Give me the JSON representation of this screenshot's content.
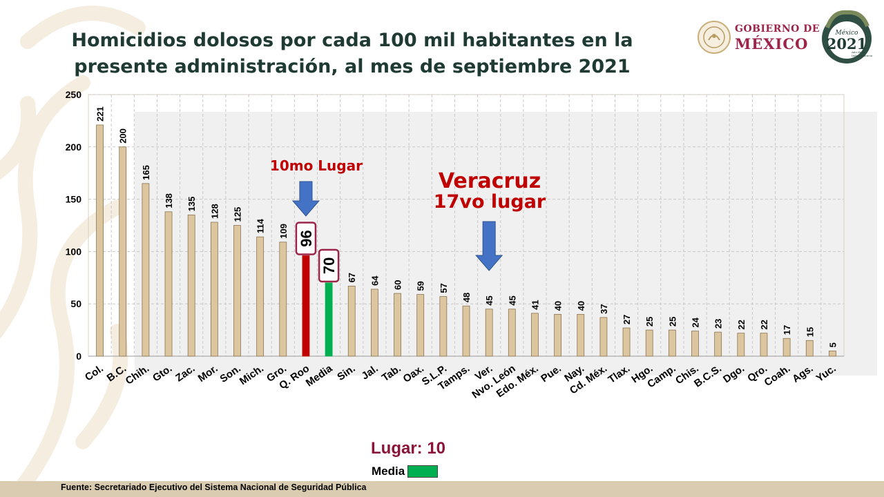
{
  "title": {
    "line1": "Homicidios dolosos por cada 100 mil habitantes en la",
    "line2": "presente administración, al mes de septiembre 2021"
  },
  "logos": {
    "gobierno_line1": "GOBIERNO DE",
    "gobierno_line2": "MÉXICO",
    "anniversary_line1": "México",
    "anniversary_year": "2021",
    "anniversary_line2": "Año de la",
    "anniversary_line3": "Independencia"
  },
  "chart_data": {
    "type": "bar",
    "title": "Homicidios dolosos por cada 100 mil habitantes en la presente administración, al mes de septiembre 2021",
    "categories": [
      "Col.",
      "B.C.",
      "Chih.",
      "Gto.",
      "Zac.",
      "Mor.",
      "Son.",
      "Mich.",
      "Gro.",
      "Q. Roo",
      "Media",
      "Sin.",
      "Jal.",
      "Tab.",
      "Oax.",
      "S.L.P.",
      "Tamps.",
      "Ver.",
      "Nvo. León",
      "Edo. Méx.",
      "Pue.",
      "Nay.",
      "Cd. Méx.",
      "Tlax.",
      "Hgo.",
      "Camp.",
      "Chis.",
      "B.C.S.",
      "Dgo.",
      "Qro.",
      "Coah.",
      "Ags.",
      "Yuc."
    ],
    "values": [
      221,
      200,
      165,
      138,
      135,
      128,
      125,
      114,
      109,
      96,
      70,
      67,
      64,
      60,
      59,
      57,
      48,
      45,
      45,
      41,
      40,
      40,
      37,
      27,
      25,
      25,
      24,
      23,
      22,
      22,
      17,
      15,
      5
    ],
    "ylim": [
      0,
      250
    ],
    "yticks": [
      0,
      50,
      100,
      150,
      200,
      250
    ],
    "grid": true,
    "colors": {
      "default": "#dcc6a0",
      "default_border": "#8a7350",
      "highlight": "#c00000",
      "media": "#00b050",
      "badge_border": "#9d2449",
      "annotation": "#c00000",
      "arrow": "#4472c4"
    },
    "highlight_category": "Q. Roo",
    "media_category": "Media",
    "annotations": [
      {
        "text": "10mo Lugar",
        "target": "Q. Roo"
      },
      {
        "text": "Veracruz",
        "target": "Ver."
      },
      {
        "text": "17vo lugar",
        "target": "Ver."
      }
    ]
  },
  "legend": {
    "lugar": "Lugar: 10",
    "media_label": "Media"
  },
  "footer": {
    "source": "Fuente: Secretariado Ejecutivo del Sistema Nacional de Seguridad Pública"
  }
}
